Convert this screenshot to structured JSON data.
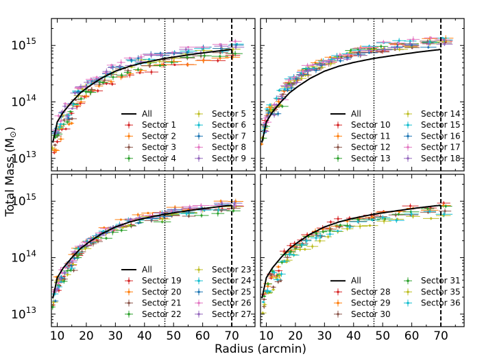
{
  "figure": {
    "xlabel": "Radius (arcmin)",
    "ylabel": "Total Mass (M",
    "ylabel_symbol": "⊙",
    "ylabel_close": ")"
  },
  "chart_data": [
    {
      "type": "scatter",
      "panel": "top-left",
      "xlim": [
        8,
        78
      ],
      "ylim": [
        6000000000000.0,
        3000000000000000.0
      ],
      "yscale": "log",
      "xticks": [],
      "yticks": [
        10000000000000.0,
        100000000000000.0,
        1000000000000000.0
      ],
      "ytick_labels": [
        {
          "base": "10",
          "exp": "13"
        },
        {
          "base": "10",
          "exp": "14"
        },
        {
          "base": "10",
          "exp": "15"
        }
      ],
      "vlines": [
        {
          "x": 47,
          "style": "dotted"
        },
        {
          "x": 70,
          "style": "dashed"
        }
      ],
      "legend_location": "lower-right",
      "line": {
        "name": "All",
        "x": [
          8.5,
          10,
          12,
          15,
          18,
          21,
          25,
          30,
          35,
          40,
          47,
          55,
          62,
          70
        ],
        "y": [
          19000000000000.0,
          44000000000000.0,
          65000000000000.0,
          100000000000000.0,
          145000000000000.0,
          190000000000000.0,
          260000000000000.0,
          350000000000000.0,
          430000000000000.0,
          500000000000000.0,
          590000000000000.0,
          680000000000000.0,
          760000000000000.0,
          850000000000000.0
        ]
      },
      "series": [
        {
          "name": "Sector 1",
          "color": "#d62728",
          "offset": 0.7
        },
        {
          "name": "Sector 2",
          "color": "#ff7f0e",
          "offset": 0.75
        },
        {
          "name": "Sector 3",
          "color": "#8c564b",
          "offset": 0.92
        },
        {
          "name": "Sector 4",
          "color": "#2ca02c",
          "offset": 0.85
        },
        {
          "name": "Sector 5",
          "color": "#bcbd22",
          "offset": 1.05
        },
        {
          "name": "Sector 6",
          "color": "#17becf",
          "offset": 1.1
        },
        {
          "name": "Sector 7",
          "color": "#1f77b4",
          "offset": 1.2
        },
        {
          "name": "Sector 8",
          "color": "#e377c2",
          "offset": 1.25
        },
        {
          "name": "Sector 9",
          "color": "#9467bd",
          "offset": 1.15
        }
      ]
    },
    {
      "type": "scatter",
      "panel": "top-right",
      "xlim": [
        8,
        78
      ],
      "ylim": [
        6000000000000.0,
        3000000000000000.0
      ],
      "yscale": "log",
      "xticks": [],
      "yticks": [
        10000000000000.0,
        100000000000000.0,
        1000000000000000.0
      ],
      "vlines": [
        {
          "x": 47,
          "style": "dotted"
        },
        {
          "x": 70,
          "style": "dashed"
        }
      ],
      "legend_location": "lower-right",
      "line": {
        "name": "All",
        "x": [
          8.5,
          10,
          12,
          15,
          18,
          21,
          25,
          30,
          35,
          40,
          47,
          55,
          62,
          70
        ],
        "y": [
          19000000000000.0,
          44000000000000.0,
          65000000000000.0,
          100000000000000.0,
          145000000000000.0,
          190000000000000.0,
          260000000000000.0,
          350000000000000.0,
          430000000000000.0,
          500000000000000.0,
          590000000000000.0,
          680000000000000.0,
          760000000000000.0,
          850000000000000.0
        ]
      },
      "series": [
        {
          "name": "Sector 10",
          "color": "#d62728",
          "offset": 1.45
        },
        {
          "name": "Sector 11",
          "color": "#ff7f0e",
          "offset": 1.55
        },
        {
          "name": "Sector 12",
          "color": "#8c564b",
          "offset": 1.35
        },
        {
          "name": "Sector 13",
          "color": "#2ca02c",
          "offset": 1.5
        },
        {
          "name": "Sector 14",
          "color": "#bcbd22",
          "offset": 1.4
        },
        {
          "name": "Sector 15",
          "color": "#17becf",
          "offset": 1.6
        },
        {
          "name": "Sector 16",
          "color": "#1f77b4",
          "offset": 1.3
        },
        {
          "name": "Sector 17",
          "color": "#e377c2",
          "offset": 1.65
        },
        {
          "name": "Sector 18",
          "color": "#9467bd",
          "offset": 1.38
        }
      ]
    },
    {
      "type": "scatter",
      "panel": "bottom-left",
      "xlim": [
        8,
        78
      ],
      "ylim": [
        6000000000000.0,
        3000000000000000.0
      ],
      "yscale": "log",
      "xticks": [
        10,
        20,
        30,
        40,
        50,
        60,
        70
      ],
      "xtick_labels": [
        "10",
        "20",
        "30",
        "40",
        "50",
        "60",
        "70"
      ],
      "yticks": [
        10000000000000.0,
        100000000000000.0,
        1000000000000000.0
      ],
      "ytick_labels": [
        {
          "base": "10",
          "exp": "13"
        },
        {
          "base": "10",
          "exp": "14"
        },
        {
          "base": "10",
          "exp": "15"
        }
      ],
      "vlines": [
        {
          "x": 47,
          "style": "dotted"
        },
        {
          "x": 70,
          "style": "dashed"
        }
      ],
      "legend_location": "lower-right",
      "line": {
        "name": "All",
        "x": [
          8.5,
          10,
          12,
          15,
          18,
          21,
          25,
          30,
          35,
          40,
          47,
          55,
          62,
          70
        ],
        "y": [
          19000000000000.0,
          44000000000000.0,
          65000000000000.0,
          100000000000000.0,
          145000000000000.0,
          190000000000000.0,
          260000000000000.0,
          350000000000000.0,
          430000000000000.0,
          500000000000000.0,
          590000000000000.0,
          680000000000000.0,
          760000000000000.0,
          850000000000000.0
        ]
      },
      "series": [
        {
          "name": "Sector 19",
          "color": "#d62728",
          "offset": 0.95
        },
        {
          "name": "Sector 20",
          "color": "#ff7f0e",
          "offset": 1.12
        },
        {
          "name": "Sector 21",
          "color": "#8c564b",
          "offset": 0.9
        },
        {
          "name": "Sector 22",
          "color": "#2ca02c",
          "offset": 0.85
        },
        {
          "name": "Sector 23",
          "color": "#bcbd22",
          "offset": 0.93
        },
        {
          "name": "Sector 24",
          "color": "#17becf",
          "offset": 1.0
        },
        {
          "name": "Sector 25",
          "color": "#1f77b4",
          "offset": 0.98
        },
        {
          "name": "Sector 26",
          "color": "#e377c2",
          "offset": 1.08
        },
        {
          "name": "Sector 27",
          "color": "#9467bd",
          "offset": 1.02
        }
      ]
    },
    {
      "type": "scatter",
      "panel": "bottom-right",
      "xlim": [
        8,
        78
      ],
      "ylim": [
        6000000000000.0,
        3000000000000000.0
      ],
      "yscale": "log",
      "xticks": [
        10,
        20,
        30,
        40,
        50,
        60,
        70
      ],
      "xtick_labels": [
        "10",
        "20",
        "30",
        "40",
        "50",
        "60",
        "70"
      ],
      "yticks": [
        10000000000000.0,
        100000000000000.0,
        1000000000000000.0
      ],
      "vlines": [
        {
          "x": 47,
          "style": "dotted"
        },
        {
          "x": 70,
          "style": "dashed"
        }
      ],
      "legend_location": "lower-right",
      "line": {
        "name": "All",
        "x": [
          8.5,
          10,
          12,
          15,
          18,
          21,
          25,
          30,
          35,
          40,
          47,
          55,
          62,
          70
        ],
        "y": [
          19000000000000.0,
          44000000000000.0,
          65000000000000.0,
          100000000000000.0,
          145000000000000.0,
          190000000000000.0,
          260000000000000.0,
          350000000000000.0,
          430000000000000.0,
          500000000000000.0,
          590000000000000.0,
          680000000000000.0,
          760000000000000.0,
          850000000000000.0
        ]
      },
      "series": [
        {
          "name": "Sector 28",
          "color": "#d62728",
          "offset": 1.05
        },
        {
          "name": "Sector 29",
          "color": "#ff7f0e",
          "offset": 0.95
        },
        {
          "name": "Sector 30",
          "color": "#8c564b",
          "offset": 0.8
        },
        {
          "name": "Sector 31",
          "color": "#2ca02c",
          "offset": 0.85
        },
        {
          "name": "Sector 35",
          "color": "#bcbd22",
          "offset": 0.65
        },
        {
          "name": "Sector 36",
          "color": "#17becf",
          "offset": 0.75
        }
      ]
    }
  ]
}
